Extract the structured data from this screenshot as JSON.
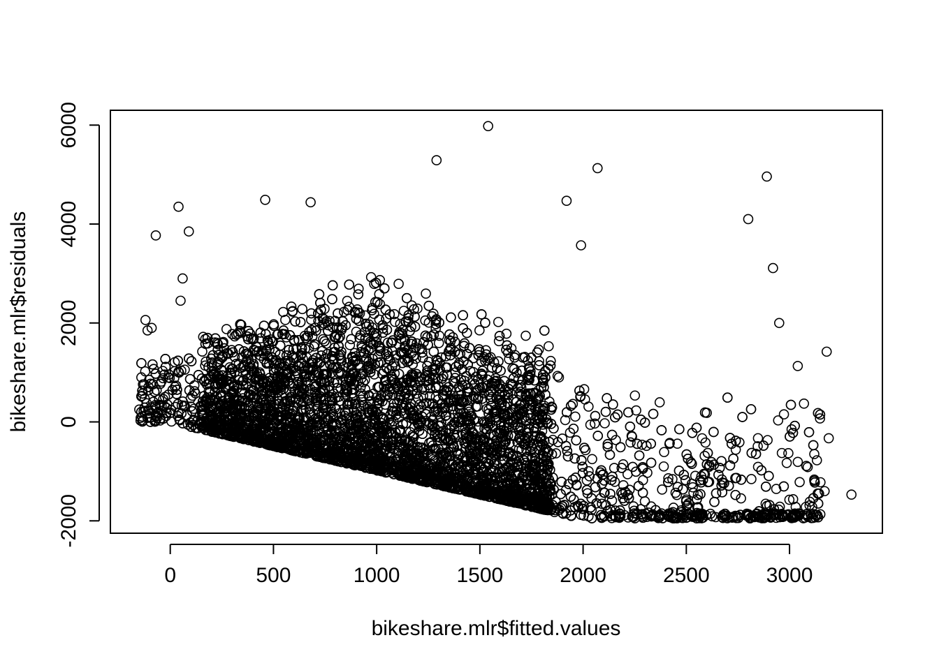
{
  "chart_data": {
    "type": "scatter",
    "title": "",
    "xlabel": "bikeshare.mlr$fitted.values",
    "ylabel": "bikeshare.mlr$residuals",
    "xlim": [
      -290,
      3450
    ],
    "ylim": [
      -2250,
      6300
    ],
    "x_ticks": [
      0,
      500,
      1000,
      1500,
      2000,
      2500,
      3000
    ],
    "x_tick_labels": [
      "0",
      "500",
      "1000",
      "1500",
      "2000",
      "2500",
      "3000"
    ],
    "y_ticks": [
      -2000,
      0,
      2000,
      4000,
      6000
    ],
    "y_tick_labels": [
      "-2000",
      "0",
      "2000",
      "4000",
      "6000"
    ],
    "grid": false,
    "marker": "open-circle",
    "marker_color": "#000000",
    "points": [
      [
        1540,
        5980
      ],
      [
        1290,
        5290
      ],
      [
        2070,
        5130
      ],
      [
        2890,
        4960
      ],
      [
        460,
        4490
      ],
      [
        1920,
        4470
      ],
      [
        680,
        4440
      ],
      [
        40,
        4350
      ],
      [
        2800,
        4100
      ],
      [
        -70,
        3770
      ],
      [
        90,
        3850
      ],
      [
        1990,
        3570
      ],
      [
        2920,
        3110
      ],
      [
        60,
        2900
      ],
      [
        50,
        2450
      ],
      [
        2950,
        2000
      ],
      [
        3180,
        1420
      ],
      [
        3040,
        1130
      ],
      [
        3070,
        370
      ],
      [
        3300,
        -1470
      ],
      [
        3170,
        -1400
      ],
      [
        3110,
        -1720
      ],
      [
        3030,
        -1720
      ],
      [
        2330,
        -1710
      ],
      [
        2500,
        -1570
      ],
      [
        1990,
        -1880
      ],
      [
        2090,
        -1940
      ],
      [
        1960,
        -1720
      ],
      [
        2140,
        -1590
      ],
      [
        -140,
        900
      ],
      [
        -120,
        2060
      ],
      [
        -110,
        1850
      ],
      [
        -90,
        1900
      ],
      [
        -150,
        250
      ],
      [
        -100,
        170
      ],
      [
        -70,
        120
      ],
      [
        3190,
        -330
      ],
      [
        3120,
        -650
      ],
      [
        3010,
        -150
      ],
      [
        3150,
        -1220
      ]
    ]
  }
}
